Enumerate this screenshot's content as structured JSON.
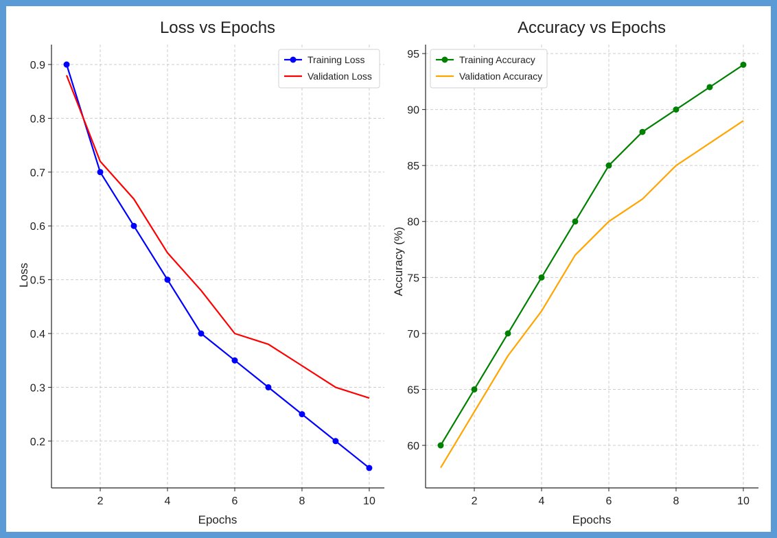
{
  "colors": {
    "border": "#5b9bd5",
    "grid": "#cccccc",
    "axis": "#222222"
  },
  "chart_data": [
    {
      "type": "line",
      "title": "Loss vs Epochs",
      "xlabel": "Epochs",
      "ylabel": "Loss",
      "x": [
        1,
        2,
        3,
        4,
        5,
        6,
        7,
        8,
        9,
        10
      ],
      "xticks": [
        2,
        4,
        6,
        8,
        10
      ],
      "yticks": [
        0.2,
        0.3,
        0.4,
        0.5,
        0.6,
        0.7,
        0.8,
        0.9
      ],
      "ytick_labels": [
        "0.2",
        "0.3",
        "0.4",
        "0.5",
        "0.6",
        "0.7",
        "0.8",
        "0.9"
      ],
      "xlim": [
        0.55,
        10.45
      ],
      "ylim": [
        0.113,
        0.937
      ],
      "grid": true,
      "legend_position": "top-right",
      "series": [
        {
          "name": "Training Loss",
          "color": "#0000ff",
          "markers": true,
          "values": [
            0.9,
            0.7,
            0.6,
            0.5,
            0.4,
            0.35,
            0.3,
            0.25,
            0.2,
            0.15
          ]
        },
        {
          "name": "Validation Loss",
          "color": "#ff0000",
          "markers": false,
          "values": [
            0.88,
            0.72,
            0.65,
            0.55,
            0.48,
            0.4,
            0.38,
            0.34,
            0.3,
            0.28
          ]
        }
      ]
    },
    {
      "type": "line",
      "title": "Accuracy vs Epochs",
      "xlabel": "Epochs",
      "ylabel": "Accuracy (%)",
      "x": [
        1,
        2,
        3,
        4,
        5,
        6,
        7,
        8,
        9,
        10
      ],
      "xticks": [
        2,
        4,
        6,
        8,
        10
      ],
      "yticks": [
        60,
        65,
        70,
        75,
        80,
        85,
        90,
        95
      ],
      "ytick_labels": [
        "60",
        "65",
        "70",
        "75",
        "80",
        "85",
        "90",
        "95"
      ],
      "xlim": [
        0.55,
        10.45
      ],
      "ylim": [
        56.2,
        95.8
      ],
      "grid": true,
      "legend_position": "top-left",
      "series": [
        {
          "name": "Training Accuracy",
          "color": "#008000",
          "markers": true,
          "values": [
            60,
            65,
            70,
            75,
            80,
            85,
            88,
            90,
            92,
            94
          ]
        },
        {
          "name": "Validation Accuracy",
          "color": "#ffa500",
          "markers": false,
          "values": [
            58,
            63,
            68,
            72,
            77,
            80,
            82,
            85,
            87,
            89
          ]
        }
      ]
    }
  ]
}
